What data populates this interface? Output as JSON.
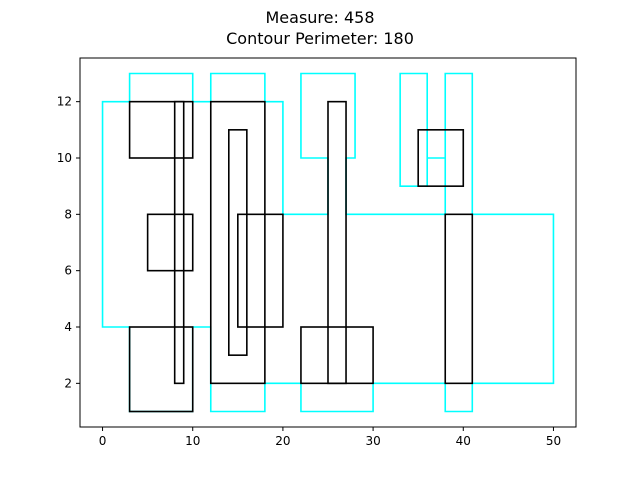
{
  "chart_data": {
    "type": "rectangles",
    "title_lines": [
      "Measure: 458",
      "Contour Perimeter: 180"
    ],
    "xlabel": "",
    "ylabel": "",
    "xlim": [
      -2.5,
      52.5
    ],
    "ylim": [
      0.45,
      13.55
    ],
    "x_ticks": [
      0,
      10,
      20,
      30,
      40,
      50
    ],
    "y_ticks": [
      2,
      4,
      6,
      8,
      10,
      12
    ],
    "grid": false,
    "rectangle_color": "#000000",
    "contour_color": "#00ffff",
    "rectangles": [
      {
        "x0": 3,
        "x1": 10,
        "y0": 10,
        "y1": 12
      },
      {
        "x0": 8,
        "x1": 9,
        "y0": 2,
        "y1": 12
      },
      {
        "x0": 5,
        "x1": 10,
        "y0": 6,
        "y1": 8
      },
      {
        "x0": 3,
        "x1": 10,
        "y0": 1,
        "y1": 4
      },
      {
        "x0": 12,
        "x1": 18,
        "y0": 2,
        "y1": 12
      },
      {
        "x0": 14,
        "x1": 16,
        "y0": 3,
        "y1": 11
      },
      {
        "x0": 15,
        "x1": 20,
        "y0": 4,
        "y1": 8
      },
      {
        "x0": 25,
        "x1": 27,
        "y0": 2,
        "y1": 12
      },
      {
        "x0": 22,
        "x1": 30,
        "y0": 2,
        "y1": 4
      },
      {
        "x0": 35,
        "x1": 40,
        "y0": 9,
        "y1": 11
      },
      {
        "x0": 38,
        "x1": 41,
        "y0": 2,
        "y1": 8
      }
    ],
    "contour": [
      [
        0,
        4
      ],
      [
        0,
        12
      ],
      [
        3,
        12
      ],
      [
        3,
        13
      ],
      [
        10,
        13
      ],
      [
        10,
        12
      ],
      [
        12,
        12
      ],
      [
        12,
        13
      ],
      [
        18,
        13
      ],
      [
        18,
        12
      ],
      [
        20,
        12
      ],
      [
        20,
        8
      ],
      [
        25,
        8
      ],
      [
        25,
        10
      ],
      [
        22,
        10
      ],
      [
        22,
        13
      ],
      [
        28,
        13
      ],
      [
        28,
        10
      ],
      [
        27,
        10
      ],
      [
        27,
        8
      ],
      [
        38,
        8
      ],
      [
        38,
        10
      ],
      [
        36,
        10
      ],
      [
        36,
        13
      ],
      [
        33,
        13
      ],
      [
        33,
        9
      ],
      [
        36,
        9
      ],
      [
        36,
        10
      ],
      [
        38,
        10
      ],
      [
        38,
        13
      ],
      [
        41,
        13
      ],
      [
        41,
        8
      ],
      [
        50,
        8
      ],
      [
        50,
        2
      ],
      [
        41,
        2
      ],
      [
        41,
        1
      ],
      [
        38,
        1
      ],
      [
        38,
        2
      ],
      [
        30,
        2
      ],
      [
        30,
        1
      ],
      [
        22,
        1
      ],
      [
        22,
        2
      ],
      [
        18,
        2
      ],
      [
        18,
        1
      ],
      [
        12,
        1
      ],
      [
        12,
        4
      ],
      [
        10,
        4
      ],
      [
        10,
        1
      ],
      [
        3,
        1
      ],
      [
        3,
        4
      ]
    ]
  }
}
